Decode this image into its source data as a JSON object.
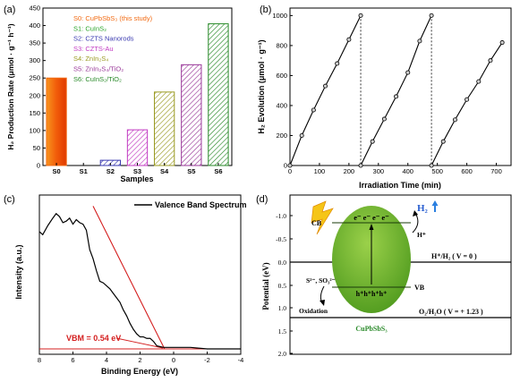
{
  "panels": {
    "a": {
      "label": "(a)"
    },
    "b": {
      "label": "(b)"
    },
    "c": {
      "label": "(c)"
    },
    "d": {
      "label": "(d)"
    }
  },
  "colors": {
    "S0": "#f26a12",
    "S1": "#2aa42a",
    "S2": "#3a3ab0",
    "S3": "#c23ac2",
    "S4": "#9a9a22",
    "S5": "#9a3a9a",
    "S6": "#2a8a2a",
    "vbm_line": "#d42020",
    "sphere": "#6aaa2a"
  },
  "chart_data": [
    {
      "type": "bar",
      "panel": "a",
      "categories": [
        "S0",
        "S1",
        "S2",
        "S3",
        "S4",
        "S5",
        "S6"
      ],
      "values": [
        250,
        0,
        15,
        102,
        210,
        288,
        405
      ],
      "xlabel": "Samples",
      "ylabel": "H₂ Production Rate (μmol · g⁻¹ h⁻¹)",
      "ylim": [
        0,
        450
      ],
      "yticks": [
        0,
        50,
        100,
        150,
        200,
        250,
        300,
        350,
        400,
        450
      ],
      "legend": [
        "S0: CuPbSbS₃ (this study)",
        "S1: CuInS₂",
        "S2: CZTS Nanorods",
        "S3: CZTS-Au",
        "S4: ZnIn₂S₄",
        "S5: ZnIn₂S₄/TiO₂",
        "S6: CuInS₂/TiO₂"
      ]
    },
    {
      "type": "line",
      "panel": "b",
      "xlabel": "Irradiation Time (min)",
      "ylabel": "H₂ Evolution (μmol · g⁻¹)",
      "xlim": [
        0,
        750
      ],
      "ylim": [
        0,
        1050
      ],
      "xticks": [
        0,
        100,
        200,
        300,
        400,
        500,
        600,
        700
      ],
      "yticks": [
        0,
        200,
        400,
        600,
        800,
        1000
      ],
      "series": [
        {
          "x": [
            0,
            40,
            80,
            120,
            160,
            200,
            240
          ],
          "y": [
            0,
            200,
            370,
            530,
            680,
            840,
            1000
          ]
        },
        {
          "x": [
            240,
            280,
            320,
            360,
            400,
            440,
            480
          ],
          "y": [
            0,
            160,
            310,
            460,
            620,
            830,
            1000
          ]
        },
        {
          "x": [
            480,
            520,
            560,
            600,
            640,
            680,
            720
          ],
          "y": [
            0,
            160,
            305,
            440,
            560,
            700,
            820
          ]
        }
      ],
      "cycle_separators_x": [
        240,
        480
      ]
    },
    {
      "type": "line",
      "panel": "c",
      "xlabel": "Binding Energy (eV)",
      "ylabel": "Intensity (a.u.)",
      "xlim": [
        8,
        -4
      ],
      "xticks": [
        8,
        6,
        4,
        2,
        0,
        -2,
        -4
      ],
      "xtick_labels": [
        "8",
        "6",
        "4",
        "2",
        "0",
        "-2",
        "-4"
      ],
      "ylim": [
        0,
        1
      ],
      "legend": [
        "Valence Band Spectrum"
      ],
      "series": [
        {
          "name": "Valence Band Spectrum",
          "x": [
            8,
            7.8,
            7.5,
            7.2,
            7.0,
            6.8,
            6.6,
            6.4,
            6.2,
            6.0,
            5.8,
            5.6,
            5.4,
            5.2,
            5.0,
            4.8,
            4.6,
            4.4,
            4.2,
            4.0,
            3.8,
            3.6,
            3.4,
            3.2,
            3.0,
            2.8,
            2.6,
            2.4,
            2.2,
            2.0,
            1.8,
            1.6,
            1.4,
            1.2,
            1.0,
            0.8,
            0.6,
            0.4,
            0.2,
            0.0,
            -1.0,
            -2.0,
            -3.0,
            -4.0
          ],
          "y": [
            0.78,
            0.76,
            0.82,
            0.87,
            0.9,
            0.88,
            0.84,
            0.85,
            0.87,
            0.83,
            0.86,
            0.84,
            0.83,
            0.79,
            0.66,
            0.6,
            0.52,
            0.45,
            0.44,
            0.42,
            0.4,
            0.37,
            0.34,
            0.31,
            0.26,
            0.22,
            0.17,
            0.13,
            0.1,
            0.08,
            0.08,
            0.07,
            0.07,
            0.05,
            0.02,
            0.015,
            0.01,
            0.01,
            0.01,
            0.01,
            0.01,
            0.0,
            0.0,
            0.0
          ]
        }
      ],
      "tangent": {
        "x": [
          4.8,
          0.54
        ],
        "y": [
          0.95,
          0.0
        ]
      },
      "annotation": "VBM = 0.54 eV"
    }
  ],
  "diagram": {
    "ylabel": "Potential (eV)",
    "yticks": [
      "-1.0",
      "-0.5",
      "0.0",
      "0.5",
      "1.0",
      "1.5",
      "2.0"
    ],
    "cb": "CB",
    "vb": "VB",
    "electrons": "e⁻ e⁻ e⁻ e⁻",
    "holes": "h⁺h⁺h⁺h⁺",
    "h2": "H₂",
    "hplus": "H⁺",
    "h_level": "H⁺/H₂ ( V = 0 )",
    "o_level": "O₂/H₂O ( V = + 1.23 )",
    "sacrificial": "S²⁻, SO₃²⁻",
    "oxidation": "Oxidation",
    "material": "CuPbSbS₃"
  }
}
